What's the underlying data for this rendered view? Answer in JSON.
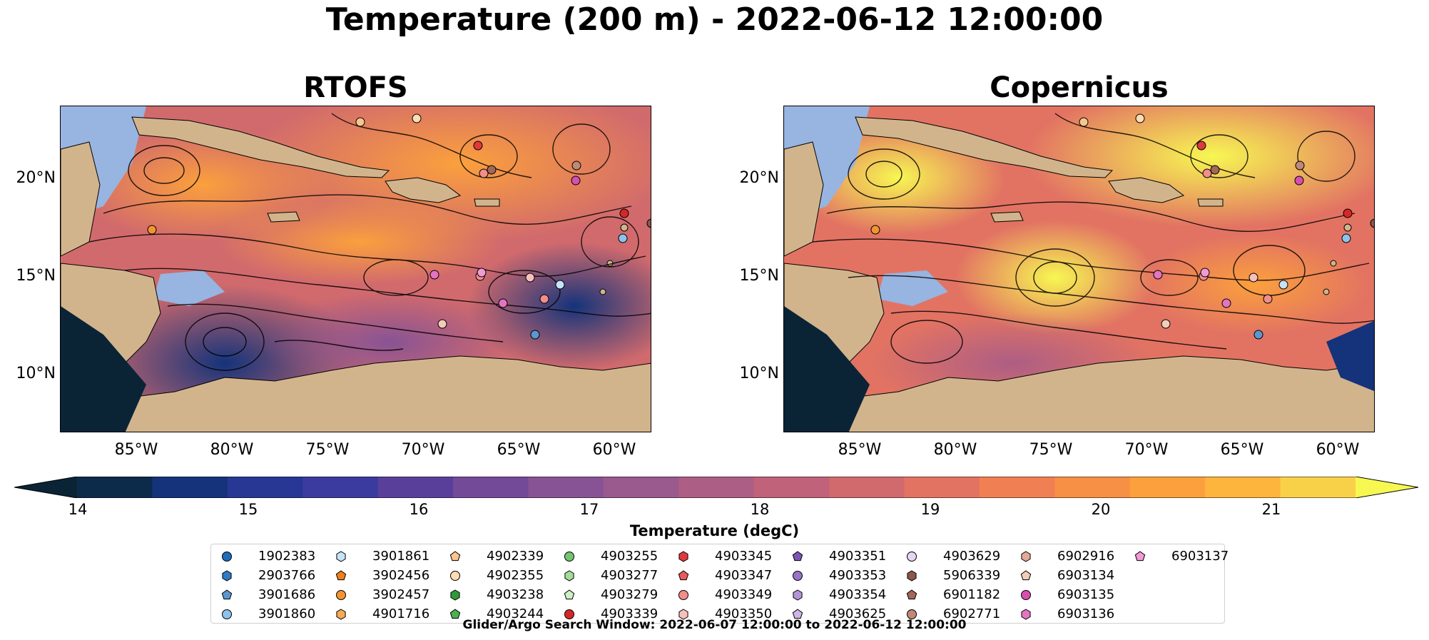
{
  "title": "Temperature (200 m) - 2022-06-12 12:00:00",
  "panels": [
    {
      "title": "RTOFS"
    },
    {
      "title": "Copernicus"
    }
  ],
  "lat_ticks": [
    "20°N",
    "15°N",
    "10°N"
  ],
  "lon_ticks": [
    "85°W",
    "80°W",
    "75°W",
    "70°W",
    "65°W",
    "60°W"
  ],
  "colorbar": {
    "label": "Temperature (degC)",
    "ticks": [
      "14",
      "15",
      "16",
      "17",
      "18",
      "19",
      "20",
      "21"
    ],
    "colors": [
      "#0c2a4a",
      "#14337a",
      "#283694",
      "#3b3a9e",
      "#5a3f9a",
      "#734a98",
      "#885394",
      "#9a5a8e",
      "#ad5e84",
      "#bf627a",
      "#d16a6d",
      "#e27363",
      "#f07f53",
      "#f78f45",
      "#fba03d",
      "#fdb53e",
      "#f9d149"
    ],
    "under_color": "#0a2436",
    "over_color": "#f7f752"
  },
  "legend": [
    {
      "id": "1902383",
      "shape": "circle",
      "color": "#1f6db8"
    },
    {
      "id": "2903766",
      "shape": "hexagon",
      "color": "#2f7bc4"
    },
    {
      "id": "3901686",
      "shape": "pentagon",
      "color": "#5b97d0"
    },
    {
      "id": "3901860",
      "shape": "circle",
      "color": "#8cc3ec"
    },
    {
      "id": "3901861",
      "shape": "hexagon",
      "color": "#c6e3f7"
    },
    {
      "id": "3902456",
      "shape": "pentagon",
      "color": "#f07f18"
    },
    {
      "id": "3902457",
      "shape": "circle",
      "color": "#f49431"
    },
    {
      "id": "4901716",
      "shape": "hexagon",
      "color": "#f6a954"
    },
    {
      "id": "4902339",
      "shape": "pentagon",
      "color": "#f9c58c"
    },
    {
      "id": "4902355",
      "shape": "circle",
      "color": "#fbdcb4"
    },
    {
      "id": "4903238",
      "shape": "hexagon",
      "color": "#2e9a3a"
    },
    {
      "id": "4903244",
      "shape": "pentagon",
      "color": "#4ab24f"
    },
    {
      "id": "4903255",
      "shape": "circle",
      "color": "#72c66f"
    },
    {
      "id": "4903277",
      "shape": "hexagon",
      "color": "#a3dd97"
    },
    {
      "id": "4903279",
      "shape": "pentagon",
      "color": "#cdf0c3"
    },
    {
      "id": "4903339",
      "shape": "circle",
      "color": "#d62728"
    },
    {
      "id": "4903345",
      "shape": "hexagon",
      "color": "#e0393b"
    },
    {
      "id": "4903347",
      "shape": "pentagon",
      "color": "#ea5a5a"
    },
    {
      "id": "4903349",
      "shape": "circle",
      "color": "#f28e8a"
    },
    {
      "id": "4903350",
      "shape": "hexagon",
      "color": "#f8c0bc"
    },
    {
      "id": "4903351",
      "shape": "pentagon",
      "color": "#7d55b4"
    },
    {
      "id": "4903353",
      "shape": "circle",
      "color": "#9a72c8"
    },
    {
      "id": "4903354",
      "shape": "hexagon",
      "color": "#b395d8"
    },
    {
      "id": "4903625",
      "shape": "pentagon",
      "color": "#cdb5e6"
    },
    {
      "id": "4903629",
      "shape": "circle",
      "color": "#e5d6f2"
    },
    {
      "id": "5906339",
      "shape": "hexagon",
      "color": "#8c564b"
    },
    {
      "id": "6901182",
      "shape": "pentagon",
      "color": "#a26756"
    },
    {
      "id": "6902771",
      "shape": "circle",
      "color": "#c08878"
    },
    {
      "id": "6902916",
      "shape": "hexagon",
      "color": "#e1ab98"
    },
    {
      "id": "6903134",
      "shape": "pentagon",
      "color": "#f2cdb9"
    },
    {
      "id": "6903135",
      "shape": "circle",
      "color": "#d84fb0"
    },
    {
      "id": "6903136",
      "shape": "hexagon",
      "color": "#e474c2"
    },
    {
      "id": "6903137",
      "shape": "pentagon",
      "color": "#f29ad6"
    }
  ],
  "footer": "Glider/Argo Search Window: 2022-06-07 12:00:00 to 2022-06-12 12:00:00"
}
